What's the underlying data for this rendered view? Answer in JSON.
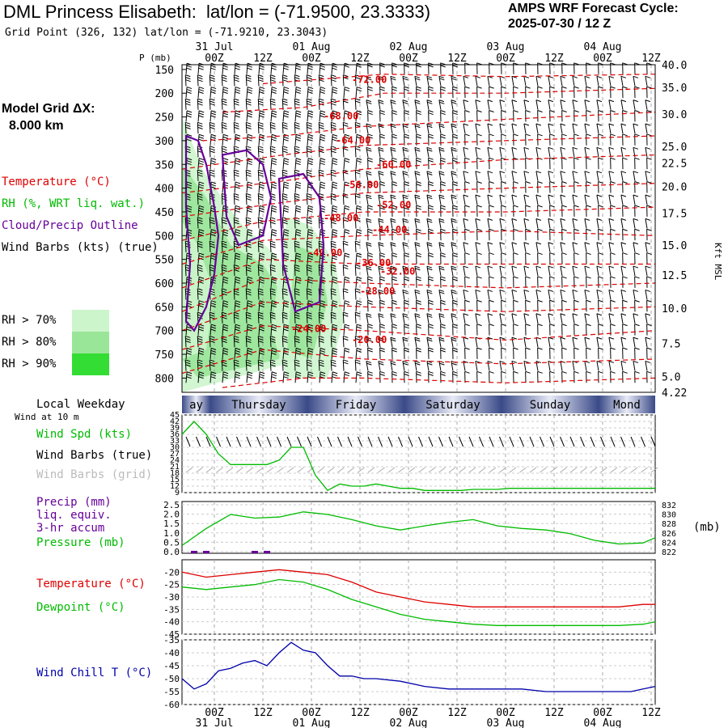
{
  "header": {
    "title": "DML Princess Elisabeth:  lat/lon = (-71.9500, 23.3333)",
    "grid_point": "Grid Point (326, 132) lat/lon = (-71.9210, 23.3043)",
    "cycle_label": "AMPS WRF Forecast Cycle:",
    "cycle_value": "2025-07-30 / 12  Z"
  },
  "side": {
    "dx_label": "Model Grid ΔX:",
    "dx_value": "8.000 km",
    "legend_temperature": "Temperature (°C)",
    "legend_rh": "RH (%, WRT liq. wat.)",
    "legend_cloud": "Cloud/Precip Outline",
    "legend_wind": "Wind Barbs (kts) (true)",
    "rh70": "RH > 70%",
    "rh80": "RH > 80%",
    "rh90": "RH > 90%",
    "local_weekday": "Local Weekday",
    "wind_at_10m": "Wind at 10 m",
    "wind_spd": "Wind Spd (kts)",
    "wind_barbs_true": "Wind Barbs (true)",
    "wind_barbs_grid": "Wind Barbs (grid)",
    "precip1": "Precip (mm)",
    "precip2": "liq. equiv.",
    "precip3": "3-hr accum",
    "pressure": "Pressure (mb)",
    "pressure_unit": "(mb)",
    "temperature": "Temperature (°C)",
    "dewpoint": "Dewpoint (°C)",
    "wind_chill": "Wind Chill T (°C)"
  },
  "colors": {
    "temperature": "#dd0000",
    "rh70": "#ccf5cc",
    "rh80": "#99e699",
    "rh90": "#33dd33",
    "cloud": "#660099",
    "wind_speed": "#00bb00",
    "precip": "#660099",
    "pressure": "#00bb00",
    "dewpoint": "#00bb00",
    "wind_chill": "#0000aa",
    "weekday_dark": "#3a4a88",
    "weekday_light": "#e8eaf6"
  },
  "chart_data": [
    {
      "type": "heatmap",
      "name": "cross-section",
      "x_ticks_top": [
        "00Z",
        "12Z",
        "00Z",
        "12Z",
        "00Z",
        "12Z",
        "00Z",
        "12Z",
        "00Z",
        "12Z"
      ],
      "date_labels_top": [
        "31 Jul",
        "01 Aug",
        "02 Aug",
        "03 Aug",
        "04 Aug"
      ],
      "ylabel_left": "P (mb)",
      "pressure_levels": [
        150,
        200,
        250,
        300,
        350,
        400,
        450,
        500,
        550,
        600,
        650,
        700,
        750,
        800
      ],
      "ylabel_right": "Kft MSL",
      "height_ticks": [
        "40.0",
        "35.0",
        "30.0",
        "25.0",
        "22.5",
        "20.0",
        "17.5",
        "15.0",
        "12.5",
        "10.0",
        "7.5",
        "5.0",
        "4.22"
      ],
      "temperature_contours": [
        "-72.00",
        "-68.00",
        "-64.00",
        "-60.00",
        "-56.00",
        "-52.00",
        "-48.00",
        "-44.00",
        "-40.00",
        "-36.00",
        "-32.00",
        "-28.00",
        "-24.00",
        "-20.00"
      ]
    },
    {
      "type": "line",
      "name": "wind-speed",
      "weekdays": [
        "ay",
        "Thursday",
        "Friday",
        "Saturday",
        "Sunday",
        "Mond"
      ],
      "y_ticks": [
        9,
        12,
        15,
        18,
        21,
        24,
        27,
        30,
        33,
        36,
        39,
        42,
        45
      ],
      "ylim": [
        9,
        45
      ],
      "series": [
        {
          "name": "Wind Spd (kts)",
          "x": [
            0,
            3,
            6,
            9,
            12,
            15,
            18,
            21,
            24,
            27,
            30,
            33,
            36,
            39,
            42,
            45,
            48,
            51,
            54,
            57,
            60,
            63,
            66,
            69,
            72,
            75,
            78,
            81,
            84,
            87,
            90,
            93,
            96,
            99,
            102,
            105,
            108,
            111,
            114,
            117
          ],
          "values": [
            36,
            42,
            36,
            27,
            22,
            22,
            22,
            22,
            24,
            30,
            30,
            17,
            10,
            13,
            12,
            12,
            13,
            12,
            11,
            11,
            10,
            10,
            10,
            10,
            10.5,
            10.5,
            10.5,
            11,
            11,
            11,
            11,
            11,
            11,
            11,
            11,
            11,
            11,
            11,
            11,
            11
          ]
        }
      ]
    },
    {
      "type": "line",
      "name": "precip-pressure",
      "y_ticks_left": [
        "2.5",
        "2.0",
        "1.5",
        "1.0",
        "0.5",
        "0.0"
      ],
      "y_ticks_right": [
        "832",
        "830",
        "828",
        "826",
        "824",
        "822"
      ],
      "series": [
        {
          "name": "Pressure (mb)",
          "axis": "right",
          "x": [
            0,
            6,
            12,
            18,
            24,
            30,
            36,
            42,
            48,
            54,
            60,
            66,
            72,
            78,
            84,
            90,
            96,
            102,
            108,
            114,
            117
          ],
          "values": [
            823.5,
            826.8,
            829.5,
            828.8,
            829.0,
            830.0,
            829.5,
            828.5,
            827.3,
            826.5,
            827.3,
            828.0,
            828.5,
            827.3,
            826.8,
            826.5,
            825.8,
            824.5,
            823.8,
            824.0,
            825.0
          ]
        },
        {
          "name": "Precip (mm)",
          "axis": "left",
          "x": [
            3,
            6,
            18,
            21
          ],
          "values": [
            0.05,
            0.05,
            0.08,
            0.05
          ]
        }
      ]
    },
    {
      "type": "line",
      "name": "temperature-dewpoint",
      "y_ticks": [
        -20,
        -25,
        -30,
        -35,
        -40,
        -45
      ],
      "ylim": [
        -45,
        -15
      ],
      "series": [
        {
          "name": "Temperature (°C)",
          "x": [
            0,
            6,
            12,
            18,
            24,
            30,
            36,
            42,
            48,
            54,
            60,
            66,
            72,
            78,
            84,
            90,
            96,
            102,
            108,
            114,
            117
          ],
          "values": [
            -20,
            -22,
            -21,
            -20,
            -19,
            -20,
            -21,
            -24,
            -28,
            -30,
            -32,
            -33,
            -34,
            -34,
            -34,
            -34,
            -34,
            -34,
            -34,
            -33,
            -33
          ]
        },
        {
          "name": "Dewpoint (°C)",
          "x": [
            0,
            6,
            12,
            18,
            24,
            30,
            36,
            42,
            48,
            54,
            60,
            66,
            72,
            78,
            84,
            90,
            96,
            102,
            108,
            114,
            117
          ],
          "values": [
            -26,
            -27,
            -26,
            -25,
            -23,
            -24,
            -27,
            -31,
            -34,
            -37,
            -39,
            -40,
            -41,
            -41.5,
            -41.5,
            -41.5,
            -41.5,
            -41.5,
            -41.5,
            -41,
            -40
          ]
        }
      ]
    },
    {
      "type": "line",
      "name": "wind-chill",
      "y_ticks": [
        -35,
        -40,
        -45,
        -50,
        -55,
        -60
      ],
      "ylim": [
        -60,
        -35
      ],
      "x_ticks_bottom": [
        "00Z",
        "12Z",
        "00Z",
        "12Z",
        "00Z",
        "12Z",
        "00Z",
        "12Z",
        "00Z",
        "12Z"
      ],
      "date_labels_bottom": [
        "31 Jul",
        "01 Aug",
        "02 Aug",
        "03 Aug",
        "04 Aug"
      ],
      "series": [
        {
          "name": "Wind Chill T (°C)",
          "x": [
            0,
            3,
            6,
            9,
            12,
            15,
            18,
            21,
            24,
            27,
            30,
            33,
            36,
            39,
            42,
            45,
            48,
            54,
            60,
            66,
            72,
            78,
            84,
            90,
            96,
            102,
            108,
            111,
            114,
            117
          ],
          "values": [
            -50,
            -54,
            -52,
            -47,
            -46,
            -44,
            -43,
            -45,
            -40,
            -36,
            -39,
            -40,
            -45,
            -49,
            -49,
            -50,
            -50,
            -51,
            -53,
            -54,
            -54,
            -54,
            -54,
            -55,
            -55,
            -55,
            -55,
            -55,
            -54,
            -53
          ]
        }
      ]
    }
  ]
}
